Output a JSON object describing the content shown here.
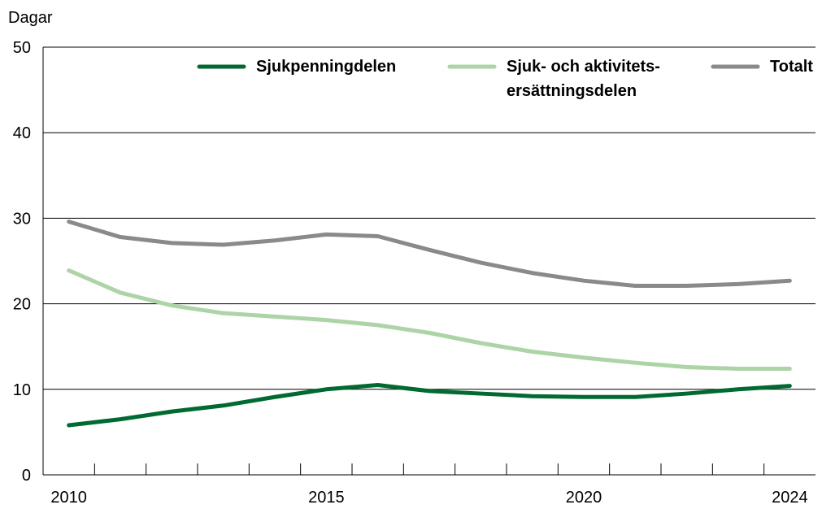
{
  "chart_data": {
    "type": "line",
    "y_label": "Dagar",
    "x": [
      2010,
      2011,
      2012,
      2013,
      2014,
      2015,
      2016,
      2017,
      2018,
      2019,
      2020,
      2021,
      2022,
      2023,
      2024
    ],
    "xlim": [
      2009.5,
      2024.5
    ],
    "xticks": [
      2010,
      2015,
      2020,
      2024
    ],
    "ylim": [
      0,
      50
    ],
    "yticks": [
      0,
      10,
      20,
      30,
      40,
      50
    ],
    "grid": true,
    "legend": "top",
    "series": [
      {
        "name": "Sjukpenningdelen",
        "color": "#006a32",
        "values": [
          5.8,
          6.5,
          7.4,
          8.1,
          9.1,
          10.0,
          10.5,
          9.8,
          9.5,
          9.2,
          9.1,
          9.1,
          9.5,
          10.0,
          10.4
        ]
      },
      {
        "name": "Sjuk- och aktivitets-\nersättningsdelen",
        "color": "#acd4a6",
        "values": [
          23.9,
          21.3,
          19.8,
          18.9,
          18.5,
          18.1,
          17.5,
          16.6,
          15.4,
          14.4,
          13.7,
          13.1,
          12.6,
          12.4,
          12.4
        ]
      },
      {
        "name": "Totalt",
        "color": "#8a8a8a",
        "values": [
          29.6,
          27.8,
          27.1,
          26.9,
          27.4,
          28.1,
          27.9,
          26.3,
          24.8,
          23.6,
          22.7,
          22.1,
          22.1,
          22.3,
          22.7
        ]
      }
    ]
  }
}
